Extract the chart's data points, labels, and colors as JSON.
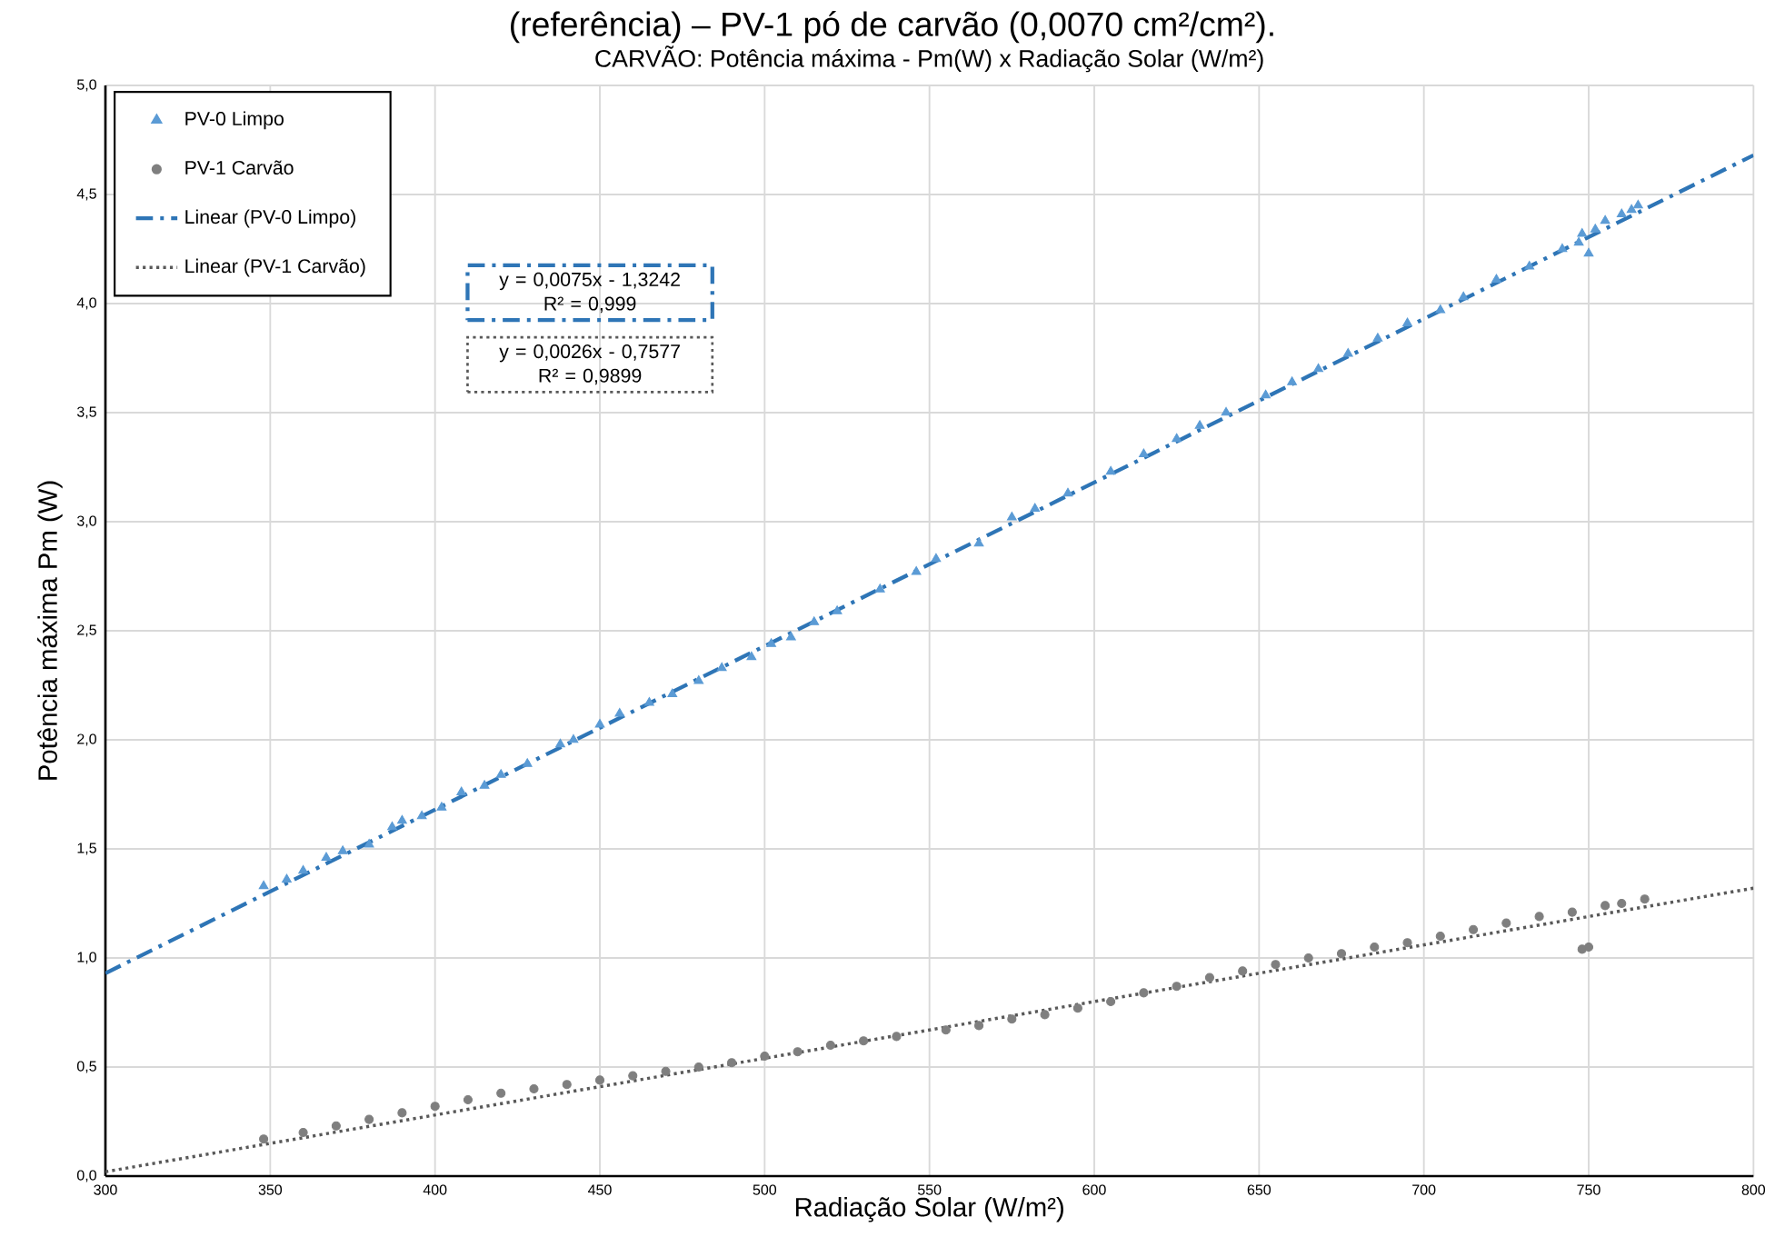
{
  "chart_data": {
    "type": "scatter",
    "title": "CARVÃO: Potência máxima - Pm(W) x Radiação Solar (W/m²)",
    "xlabel": "Radiação Solar (W/m²)",
    "ylabel": "Potência máxima Pm (W)",
    "annotations": [
      "(referência) – PV-1 pó de carvão (0,0070 cm²/cm²).",
      "y = 0,0075x - 1,3242",
      "R² = 0,999",
      "y = 0,0026x - 0,7577",
      "R² = 0,9899"
    ],
    "xlim": [
      300,
      800
    ],
    "xticks": [
      300,
      350,
      400,
      450,
      500,
      550,
      600,
      650,
      700,
      750,
      800
    ],
    "ylim": [
      0,
      5
    ],
    "yticks": [
      {
        "value": 0,
        "label": "0,0"
      },
      {
        "value": 0.5,
        "label": "0,5"
      },
      {
        "value": 1,
        "label": "1,0"
      },
      {
        "value": 1.5,
        "label": "1,5"
      },
      {
        "value": 2,
        "label": "2,0"
      },
      {
        "value": 2.5,
        "label": "2,5"
      },
      {
        "value": 3,
        "label": "3,0"
      },
      {
        "value": 3.5,
        "label": "3,5"
      },
      {
        "value": 4,
        "label": "4,0"
      },
      {
        "value": 4.5,
        "label": "4,5"
      },
      {
        "value": 5,
        "label": "5,0"
      }
    ],
    "grid": true,
    "legend": "top left",
    "series": [
      {
        "name": "PV-0 Limpo",
        "marker": "triangle",
        "color": "#5b9bd5",
        "x": [
          348,
          355,
          360,
          367,
          372,
          380,
          387,
          390,
          396,
          402,
          408,
          415,
          420,
          428,
          438,
          442,
          450,
          456,
          465,
          472,
          480,
          487,
          496,
          502,
          508,
          515,
          522,
          535,
          546,
          552,
          565,
          575,
          582,
          592,
          605,
          615,
          625,
          632,
          640,
          652,
          660,
          668,
          677,
          686,
          695,
          705,
          712,
          722,
          732,
          742,
          747,
          748,
          750,
          752,
          755,
          760,
          763,
          765
        ],
        "values": [
          1.33,
          1.36,
          1.4,
          1.46,
          1.49,
          1.52,
          1.6,
          1.63,
          1.65,
          1.69,
          1.76,
          1.79,
          1.84,
          1.89,
          1.98,
          2.0,
          2.07,
          2.12,
          2.17,
          2.21,
          2.27,
          2.33,
          2.38,
          2.44,
          2.47,
          2.54,
          2.59,
          2.69,
          2.77,
          2.83,
          2.9,
          3.02,
          3.06,
          3.13,
          3.23,
          3.31,
          3.38,
          3.44,
          3.5,
          3.58,
          3.64,
          3.7,
          3.77,
          3.84,
          3.91,
          3.97,
          4.03,
          4.11,
          4.17,
          4.25,
          4.28,
          4.32,
          4.23,
          4.34,
          4.38,
          4.41,
          4.43,
          4.45
        ]
      },
      {
        "name": "PV-1 Carvão",
        "marker": "circle",
        "color": "#7f7f7f",
        "x": [
          348,
          360,
          370,
          380,
          390,
          400,
          410,
          420,
          430,
          440,
          450,
          460,
          470,
          480,
          490,
          500,
          510,
          520,
          530,
          540,
          555,
          565,
          575,
          585,
          595,
          605,
          615,
          625,
          635,
          645,
          655,
          665,
          675,
          685,
          695,
          705,
          715,
          725,
          735,
          745,
          748,
          750,
          755,
          760,
          767
        ],
        "values": [
          0.17,
          0.2,
          0.23,
          0.26,
          0.29,
          0.32,
          0.35,
          0.38,
          0.4,
          0.42,
          0.44,
          0.46,
          0.48,
          0.5,
          0.52,
          0.55,
          0.57,
          0.6,
          0.62,
          0.64,
          0.67,
          0.69,
          0.72,
          0.74,
          0.77,
          0.8,
          0.84,
          0.87,
          0.91,
          0.94,
          0.97,
          1.0,
          1.02,
          1.05,
          1.07,
          1.1,
          1.13,
          1.16,
          1.19,
          1.21,
          1.04,
          1.05,
          1.24,
          1.25,
          1.27
        ]
      },
      {
        "name": "Linear (PV-0 Limpo)",
        "type": "line",
        "marker": "none",
        "line_style": "dashed",
        "color": "#2e75b6",
        "x": [
          300,
          800
        ],
        "values": [
          0.93,
          4.68
        ]
      },
      {
        "name": "Linear (PV-1 Carvão)",
        "type": "line",
        "marker": "none",
        "line_style": "dotted",
        "color": "#595959",
        "x": [
          300,
          800
        ],
        "values": [
          0.02,
          1.32
        ]
      }
    ]
  }
}
